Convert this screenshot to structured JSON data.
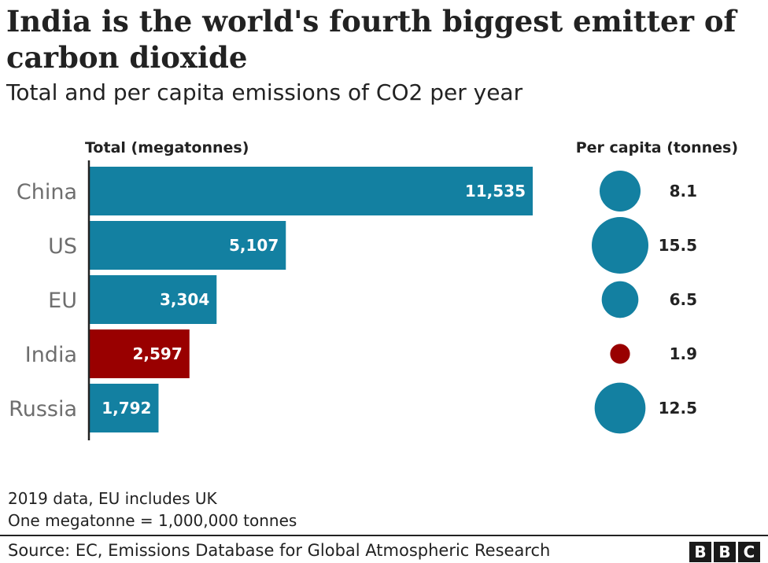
{
  "title": "India is the world's fourth biggest emitter of carbon dioxide",
  "subtitle": "Total and per capita emissions of CO2 per year",
  "chart_data": {
    "type": "bar",
    "orientation": "horizontal",
    "categories": [
      "China",
      "US",
      "EU",
      "India",
      "Russia"
    ],
    "series": [
      {
        "name": "Total (megatonnes)",
        "values": [
          11535,
          5107,
          3304,
          2597,
          1792
        ]
      },
      {
        "name": "Per capita (tonnes)",
        "values": [
          8.1,
          15.5,
          6.5,
          1.9,
          12.5
        ]
      }
    ],
    "value_labels": [
      "11,535",
      "5,107",
      "3,304",
      "2,597",
      "1,792"
    ],
    "per_capita_labels": [
      "8.1",
      "15.5",
      "6.5",
      "1.9",
      "12.5"
    ],
    "total_header": "Total (megatonnes)",
    "per_capita_header": "Per capita (tonnes)",
    "highlight_category": "India",
    "xlim": [
      0,
      11535
    ],
    "grid": false,
    "colors": {
      "default": "#1380A1",
      "highlight": "#990000"
    }
  },
  "notes": [
    "2019 data, EU includes UK",
    "One megatonne = 1,000,000 tonnes"
  ],
  "source": "Source: EC, Emissions Database for Global Atmospheric Research",
  "logo": [
    "B",
    "B",
    "C"
  ]
}
